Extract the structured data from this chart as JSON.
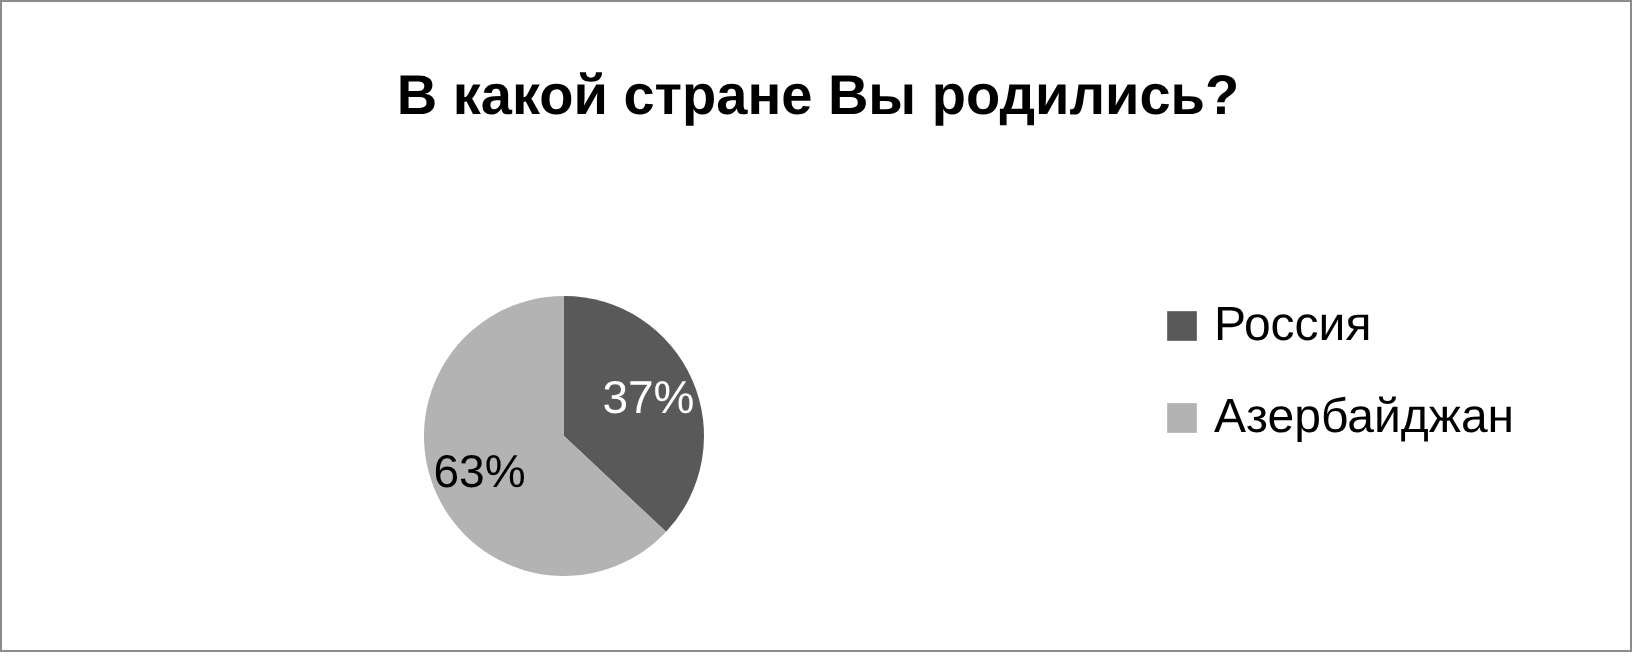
{
  "chart_data": {
    "type": "pie",
    "title": "В какой стране Вы родились?",
    "categories": [
      "Россия",
      "Азербайджан"
    ],
    "values": [
      37,
      63
    ],
    "colors": [
      "#595959",
      "#b3b3b3"
    ],
    "value_labels": [
      "37%",
      "63%"
    ],
    "legend": "right"
  }
}
